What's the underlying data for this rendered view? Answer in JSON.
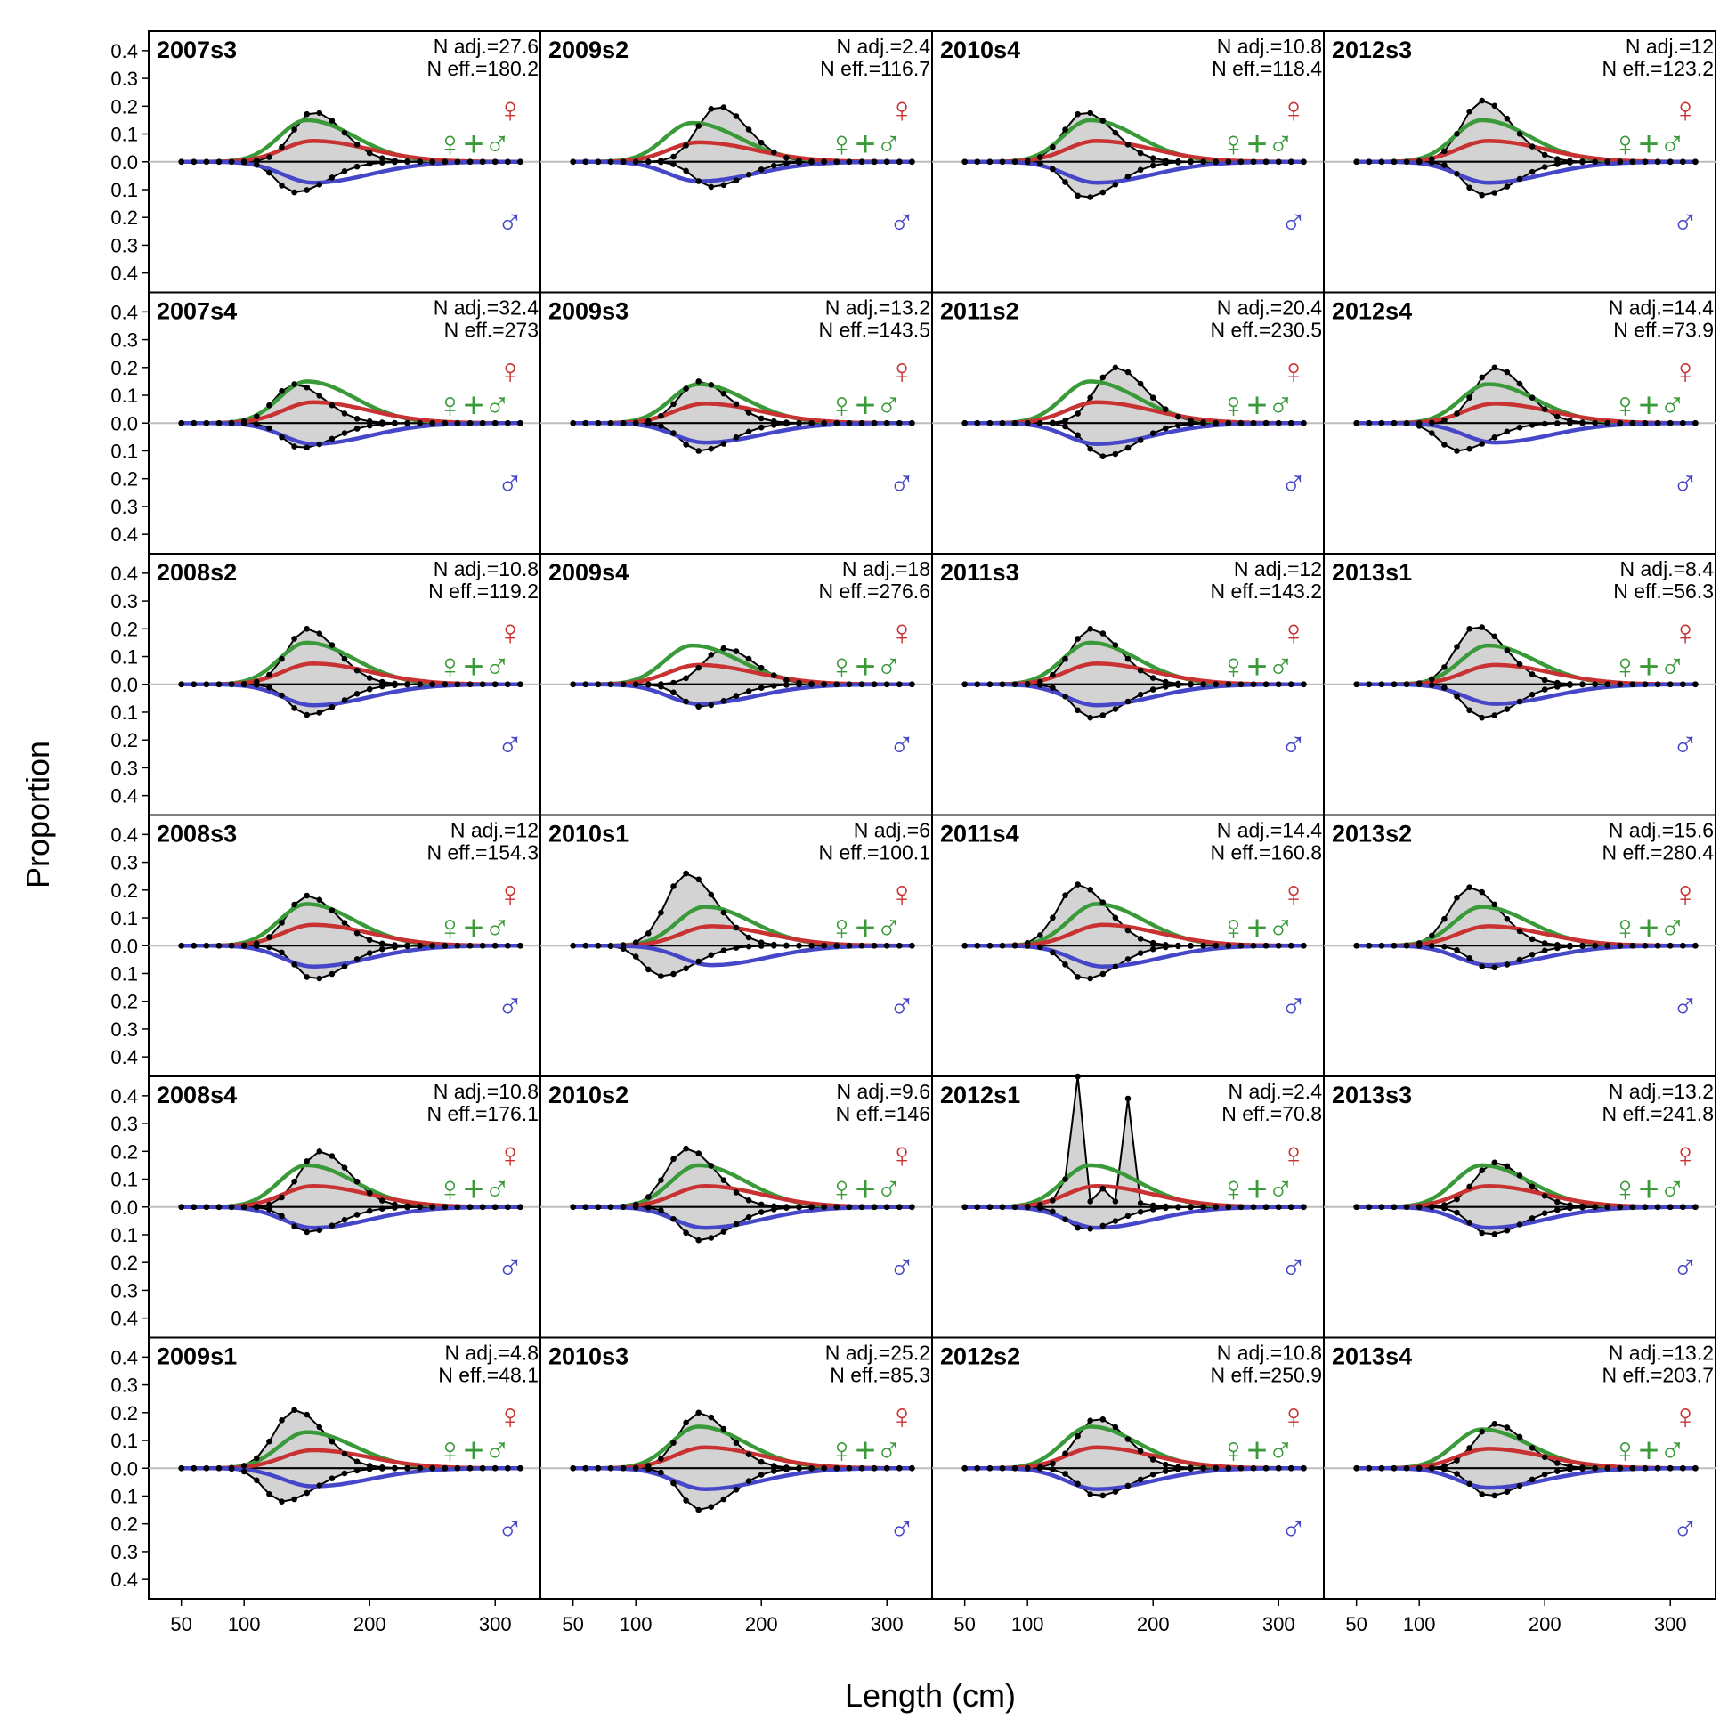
{
  "chart_data": {
    "type": "line",
    "xlabel": "Length (cm)",
    "ylabel": "Proportion",
    "xlim": [
      24,
      336
    ],
    "ylim": [
      -0.47,
      0.47
    ],
    "xticks": [
      50,
      100,
      200,
      300
    ],
    "xtick_labels": [
      "50",
      "100",
      "200",
      "300"
    ],
    "yticks": [
      0.4,
      0.3,
      0.2,
      0.1,
      0.0,
      -0.1,
      -0.2,
      -0.3,
      -0.4
    ],
    "ytick_labels": [
      "0.4",
      "0.3",
      "0.2",
      "0.1",
      "0.0",
      "0.1",
      "0.2",
      "0.3",
      "0.4"
    ],
    "layout": {
      "rows": 6,
      "cols": 4,
      "order": "column-major"
    },
    "sex_symbols": {
      "female": "♀",
      "combined": "♀+♂",
      "male": "♂"
    },
    "colors": {
      "observed_fill": "#d3d3d3",
      "observed_line": "#000000",
      "expected_combined": "#3a9a3a",
      "expected_female": "#c83232",
      "expected_male": "#4646c8",
      "zero_line": "#bebebe"
    },
    "panels": [
      {
        "label": "2007s3",
        "n_adj": "N adj.=27.6",
        "n_eff": "N eff.=180.2",
        "female_peak": 0.18,
        "male_peak": 0.11,
        "female_mode": 155,
        "male_mode": 140,
        "fitted_peak": 0.15,
        "fitted_mode": 150
      },
      {
        "label": "2007s4",
        "n_adj": "N adj.=32.4",
        "n_eff": "N eff.=273",
        "female_peak": 0.14,
        "male_peak": 0.09,
        "female_mode": 140,
        "male_mode": 145,
        "fitted_peak": 0.15,
        "fitted_mode": 150
      },
      {
        "label": "2008s2",
        "n_adj": "N adj.=10.8",
        "n_eff": "N eff.=119.2",
        "female_peak": 0.2,
        "male_peak": 0.11,
        "female_mode": 150,
        "male_mode": 150,
        "fitted_peak": 0.15,
        "fitted_mode": 150
      },
      {
        "label": "2008s3",
        "n_adj": "N adj.=12",
        "n_eff": "N eff.=154.3",
        "female_peak": 0.18,
        "male_peak": 0.12,
        "female_mode": 150,
        "male_mode": 155,
        "fitted_peak": 0.15,
        "fitted_mode": 150
      },
      {
        "label": "2008s4",
        "n_adj": "N adj.=10.8",
        "n_eff": "N eff.=176.1",
        "female_peak": 0.2,
        "male_peak": 0.09,
        "female_mode": 160,
        "male_mode": 150,
        "fitted_peak": 0.15,
        "fitted_mode": 150
      },
      {
        "label": "2009s1",
        "n_adj": "N adj.=4.8",
        "n_eff": "N eff.=48.1",
        "female_peak": 0.21,
        "male_peak": 0.12,
        "female_mode": 140,
        "male_mode": 130,
        "fitted_peak": 0.13,
        "fitted_mode": 150
      },
      {
        "label": "2009s2",
        "n_adj": "N adj.=2.4",
        "n_eff": "N eff.=116.7",
        "female_peak": 0.2,
        "male_peak": 0.09,
        "female_mode": 165,
        "male_mode": 160,
        "fitted_peak": 0.14,
        "fitted_mode": 145
      },
      {
        "label": "2009s3",
        "n_adj": "N adj.=13.2",
        "n_eff": "N eff.=143.5",
        "female_peak": 0.15,
        "male_peak": 0.1,
        "female_mode": 150,
        "male_mode": 150,
        "fitted_peak": 0.14,
        "fitted_mode": 150
      },
      {
        "label": "2009s4",
        "n_adj": "N adj.=18",
        "n_eff": "N eff.=276.6",
        "female_peak": 0.13,
        "male_peak": 0.08,
        "female_mode": 170,
        "male_mode": 150,
        "fitted_peak": 0.14,
        "fitted_mode": 145
      },
      {
        "label": "2010s1",
        "n_adj": "N adj.=6",
        "n_eff": "N eff.=100.1",
        "female_peak": 0.26,
        "male_peak": 0.11,
        "female_mode": 140,
        "male_mode": 120,
        "fitted_peak": 0.14,
        "fitted_mode": 155
      },
      {
        "label": "2010s2",
        "n_adj": "N adj.=9.6",
        "n_eff": "N eff.=146",
        "female_peak": 0.21,
        "male_peak": 0.12,
        "female_mode": 140,
        "male_mode": 150,
        "fitted_peak": 0.15,
        "fitted_mode": 150
      },
      {
        "label": "2010s3",
        "n_adj": "N adj.=25.2",
        "n_eff": "N eff.=85.3",
        "female_peak": 0.2,
        "male_peak": 0.15,
        "female_mode": 150,
        "male_mode": 150,
        "fitted_peak": 0.15,
        "fitted_mode": 150
      },
      {
        "label": "2010s4",
        "n_adj": "N adj.=10.8",
        "n_eff": "N eff.=118.4",
        "female_peak": 0.18,
        "male_peak": 0.13,
        "female_mode": 145,
        "male_mode": 145,
        "fitted_peak": 0.15,
        "fitted_mode": 150
      },
      {
        "label": "2011s2",
        "n_adj": "N adj.=20.4",
        "n_eff": "N eff.=230.5",
        "female_peak": 0.2,
        "male_peak": 0.12,
        "female_mode": 170,
        "male_mode": 160,
        "fitted_peak": 0.15,
        "fitted_mode": 150
      },
      {
        "label": "2011s3",
        "n_adj": "N adj.=12",
        "n_eff": "N eff.=143.2",
        "female_peak": 0.2,
        "male_peak": 0.12,
        "female_mode": 150,
        "male_mode": 150,
        "fitted_peak": 0.15,
        "fitted_mode": 150
      },
      {
        "label": "2011s4",
        "n_adj": "N adj.=14.4",
        "n_eff": "N eff.=160.8",
        "female_peak": 0.22,
        "male_peak": 0.12,
        "female_mode": 140,
        "male_mode": 145,
        "fitted_peak": 0.15,
        "fitted_mode": 155
      },
      {
        "label": "2012s1",
        "n_adj": "N adj.=2.4",
        "n_eff": "N eff.=70.8",
        "female_peak": 0.47,
        "male_peak": 0.08,
        "female_mode": 145,
        "male_mode": 145,
        "fitted_peak": 0.15,
        "fitted_mode": 150
      },
      {
        "label": "2012s2",
        "n_adj": "N adj.=10.8",
        "n_eff": "N eff.=250.9",
        "female_peak": 0.18,
        "male_peak": 0.1,
        "female_mode": 155,
        "male_mode": 155,
        "fitted_peak": 0.15,
        "fitted_mode": 150
      },
      {
        "label": "2012s3",
        "n_adj": "N adj.=12",
        "n_eff": "N eff.=123.2",
        "female_peak": 0.22,
        "male_peak": 0.12,
        "female_mode": 150,
        "male_mode": 150,
        "fitted_peak": 0.15,
        "fitted_mode": 150
      },
      {
        "label": "2012s4",
        "n_adj": "N adj.=14.4",
        "n_eff": "N eff.=73.9",
        "female_peak": 0.2,
        "male_peak": 0.1,
        "female_mode": 160,
        "male_mode": 130,
        "fitted_peak": 0.14,
        "fitted_mode": 155
      },
      {
        "label": "2013s1",
        "n_adj": "N adj.=8.4",
        "n_eff": "N eff.=56.3",
        "female_peak": 0.21,
        "male_peak": 0.12,
        "female_mode": 145,
        "male_mode": 150,
        "fitted_peak": 0.14,
        "fitted_mode": 155
      },
      {
        "label": "2013s2",
        "n_adj": "N adj.=15.6",
        "n_eff": "N eff.=280.4",
        "female_peak": 0.21,
        "male_peak": 0.08,
        "female_mode": 140,
        "male_mode": 155,
        "fitted_peak": 0.14,
        "fitted_mode": 150
      },
      {
        "label": "2013s3",
        "n_adj": "N adj.=13.2",
        "n_eff": "N eff.=241.8",
        "female_peak": 0.16,
        "male_peak": 0.1,
        "female_mode": 160,
        "male_mode": 155,
        "fitted_peak": 0.15,
        "fitted_mode": 150
      },
      {
        "label": "2013s4",
        "n_adj": "N adj.=13.2",
        "n_eff": "N eff.=203.7",
        "female_peak": 0.16,
        "male_peak": 0.1,
        "female_mode": 160,
        "male_mode": 155,
        "fitted_peak": 0.14,
        "fitted_mode": 150
      }
    ]
  }
}
